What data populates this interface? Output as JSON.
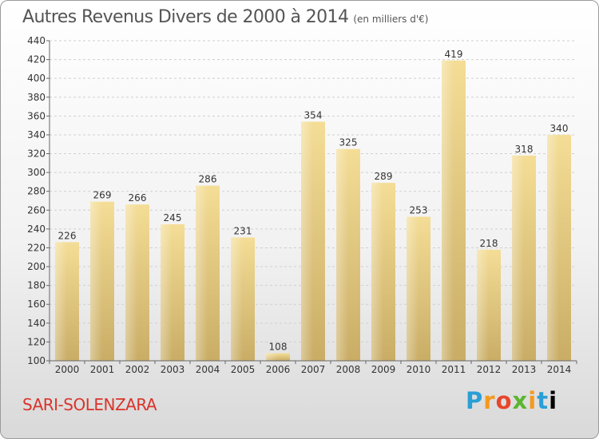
{
  "title": "Autres Revenus Divers de 2000 à 2014",
  "unit_note": "(en milliers d'€)",
  "place": "SARI-SOLENZARA",
  "logo": [
    "P",
    "r",
    "o",
    "x",
    "i",
    "t",
    "i"
  ],
  "chart_data": {
    "type": "bar",
    "title": "Autres Revenus Divers de 2000 à 2014",
    "subtitle": "(en milliers d'€)",
    "xlabel": "",
    "ylabel": "",
    "categories": [
      "2000",
      "2001",
      "2002",
      "2003",
      "2004",
      "2005",
      "2006",
      "2007",
      "2008",
      "2009",
      "2010",
      "2011",
      "2012",
      "2013",
      "2014"
    ],
    "values": [
      226,
      269,
      266,
      245,
      286,
      231,
      108,
      354,
      325,
      289,
      253,
      419,
      218,
      318,
      340
    ],
    "ylim": [
      100,
      440
    ],
    "yticks": [
      100,
      120,
      140,
      160,
      180,
      200,
      220,
      240,
      260,
      280,
      300,
      320,
      340,
      360,
      380,
      400,
      420,
      440
    ],
    "grid": true,
    "bar_color": "#e6c97c"
  }
}
